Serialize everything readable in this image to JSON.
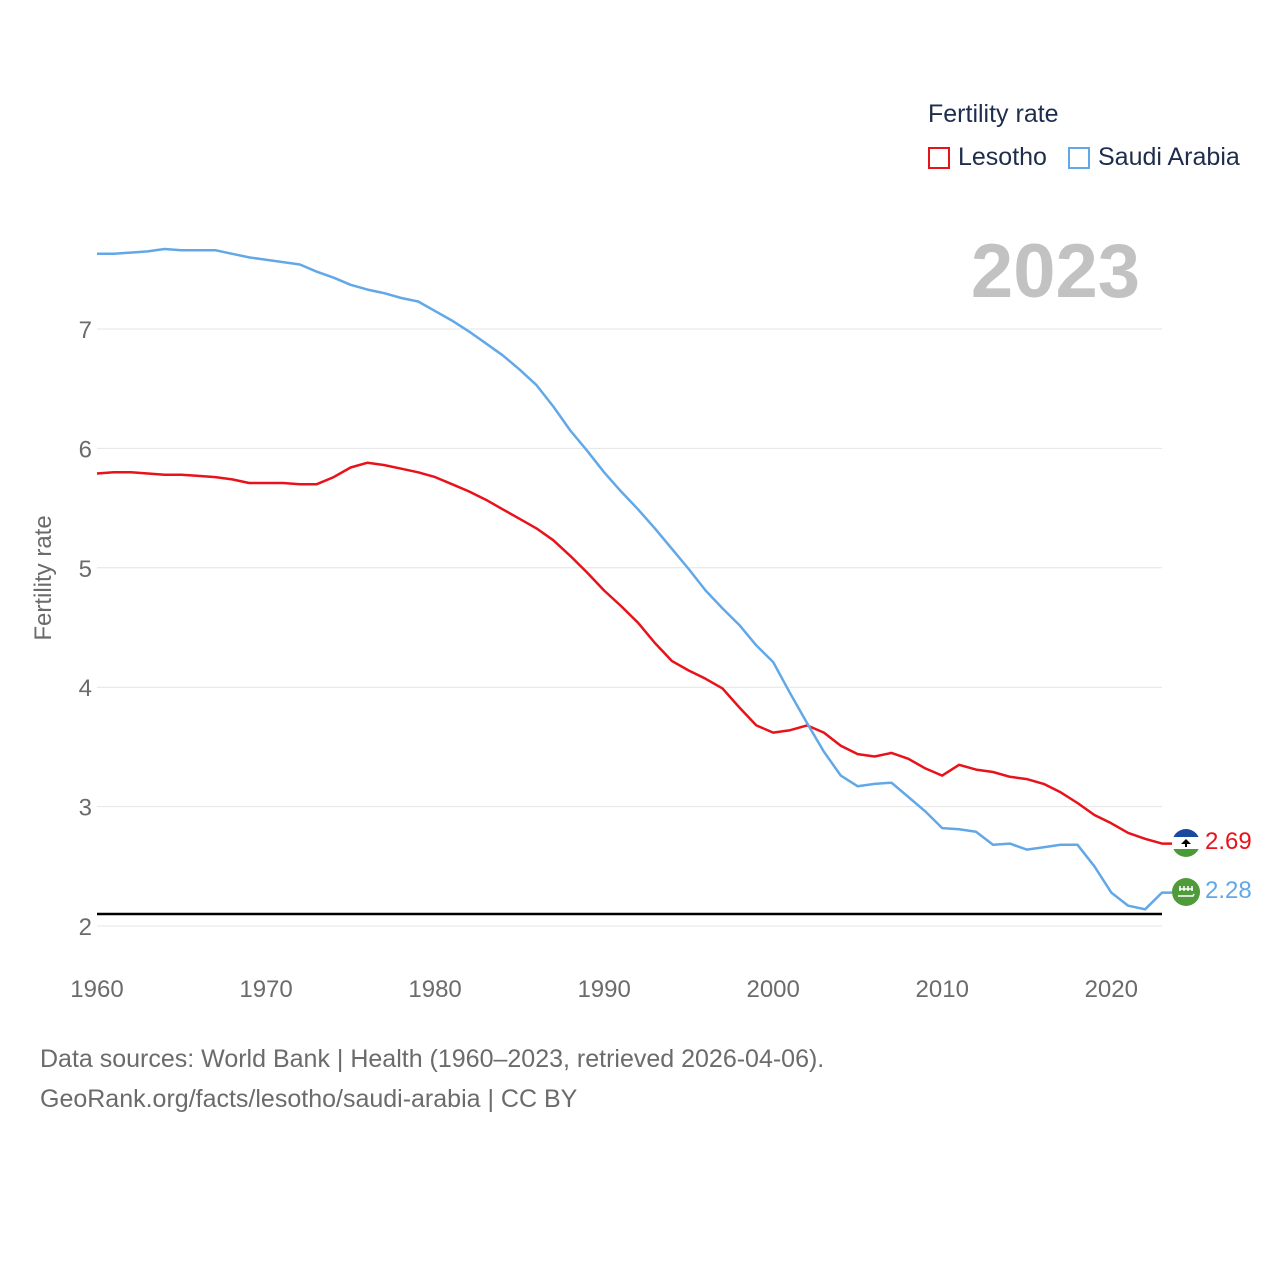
{
  "legend": {
    "title": "Fertility rate",
    "items": [
      {
        "label": "Lesotho",
        "color": "#e8121b"
      },
      {
        "label": "Saudi Arabia",
        "color": "#62a8e8"
      }
    ]
  },
  "year_stamp": "2023",
  "end_labels": {
    "lesotho": "2.69",
    "saudi": "2.28"
  },
  "flags": {
    "lesotho": "lesotho-flag-icon",
    "saudi": "saudi-arabia-flag-icon"
  },
  "footer": {
    "line1": "Data sources: World Bank | Health (1960–2023, retrieved 2026-04-06).",
    "line2": "GeoRank.org/facts/lesotho/saudi-arabia | CC BY"
  },
  "chart_data": {
    "type": "line",
    "title": "Fertility rate",
    "xlabel": "",
    "ylabel": "Fertility rate",
    "xlim": [
      1960,
      2023
    ],
    "ylim": [
      2,
      7.6
    ],
    "x_ticks": [
      1960,
      1970,
      1980,
      1990,
      2000,
      2010,
      2020
    ],
    "y_ticks": [
      2,
      3,
      4,
      5,
      6,
      7
    ],
    "reference_line": {
      "y": 2.1,
      "color": "#000000"
    },
    "x": [
      1960,
      1961,
      1962,
      1963,
      1964,
      1965,
      1966,
      1967,
      1968,
      1969,
      1970,
      1971,
      1972,
      1973,
      1974,
      1975,
      1976,
      1977,
      1978,
      1979,
      1980,
      1981,
      1982,
      1983,
      1984,
      1985,
      1986,
      1987,
      1988,
      1989,
      1990,
      1991,
      1992,
      1993,
      1994,
      1995,
      1996,
      1997,
      1998,
      1999,
      2000,
      2001,
      2002,
      2003,
      2004,
      2005,
      2006,
      2007,
      2008,
      2009,
      2010,
      2011,
      2012,
      2013,
      2014,
      2015,
      2016,
      2017,
      2018,
      2019,
      2020,
      2021,
      2022,
      2023
    ],
    "series": [
      {
        "name": "Lesotho",
        "color": "#e8121b",
        "values": [
          5.79,
          5.8,
          5.8,
          5.79,
          5.78,
          5.78,
          5.77,
          5.76,
          5.74,
          5.71,
          5.71,
          5.71,
          5.7,
          5.7,
          5.76,
          5.84,
          5.88,
          5.86,
          5.83,
          5.8,
          5.76,
          5.7,
          5.64,
          5.57,
          5.49,
          5.41,
          5.33,
          5.23,
          5.1,
          4.96,
          4.81,
          4.68,
          4.54,
          4.37,
          4.22,
          4.14,
          4.07,
          3.99,
          3.83,
          3.68,
          3.62,
          3.64,
          3.68,
          3.62,
          3.51,
          3.44,
          3.42,
          3.45,
          3.4,
          3.32,
          3.26,
          3.35,
          3.31,
          3.29,
          3.25,
          3.23,
          3.19,
          3.12,
          3.03,
          2.93,
          2.86,
          2.78,
          2.73,
          2.69
        ]
      },
      {
        "name": "Saudi Arabia",
        "color": "#62a8e8",
        "values": [
          7.63,
          7.63,
          7.64,
          7.65,
          7.67,
          7.66,
          7.66,
          7.66,
          7.63,
          7.6,
          7.58,
          7.56,
          7.54,
          7.48,
          7.43,
          7.37,
          7.33,
          7.3,
          7.26,
          7.23,
          7.15,
          7.07,
          6.98,
          6.88,
          6.78,
          6.66,
          6.53,
          6.35,
          6.15,
          5.98,
          5.8,
          5.64,
          5.49,
          5.33,
          5.16,
          4.99,
          4.81,
          4.66,
          4.52,
          4.35,
          4.21,
          3.95,
          3.7,
          3.46,
          3.26,
          3.17,
          3.19,
          3.2,
          3.08,
          2.96,
          2.82,
          2.81,
          2.79,
          2.68,
          2.69,
          2.64,
          2.66,
          2.68,
          2.68,
          2.5,
          2.28,
          2.17,
          2.14,
          2.28
        ]
      }
    ]
  }
}
